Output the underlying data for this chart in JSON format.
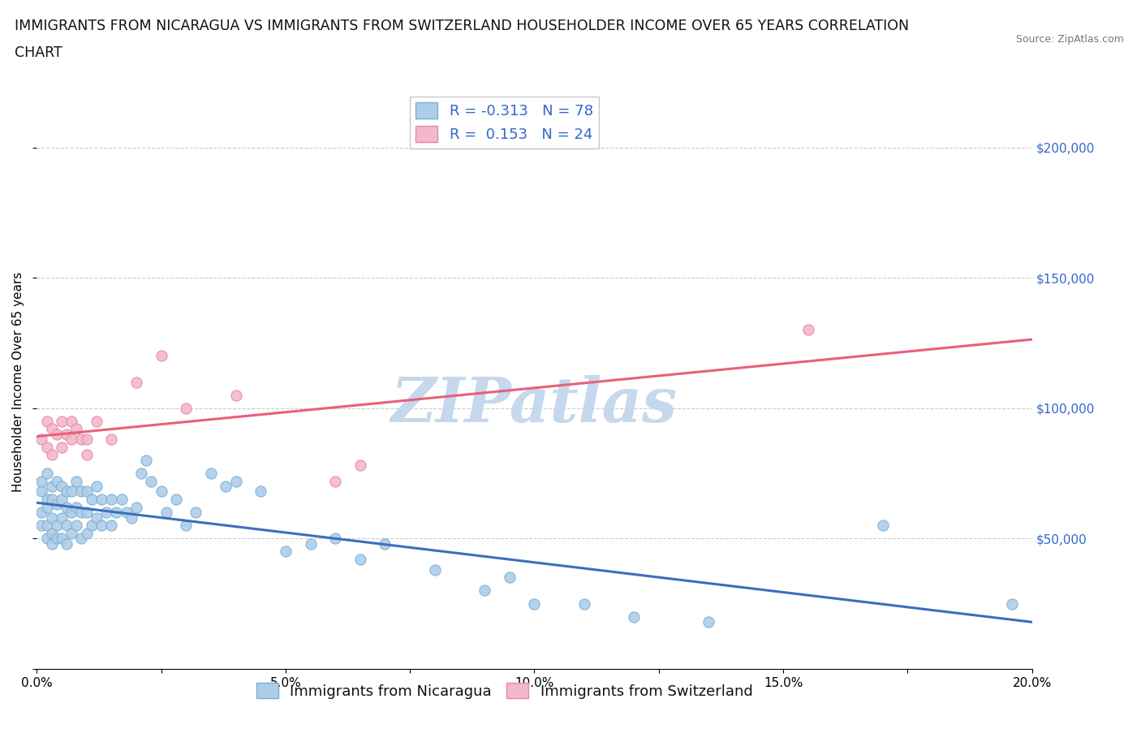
{
  "title_line1": "IMMIGRANTS FROM NICARAGUA VS IMMIGRANTS FROM SWITZERLAND HOUSEHOLDER INCOME OVER 65 YEARS CORRELATION",
  "title_line2": "CHART",
  "source_text": "Source: ZipAtlas.com",
  "ylabel": "Householder Income Over 65 years",
  "xlim": [
    0.0,
    0.2
  ],
  "ylim": [
    0,
    220000
  ],
  "yticks": [
    0,
    50000,
    100000,
    150000,
    200000
  ],
  "right_ytick_labels": [
    "$50,000",
    "$100,000",
    "$150,000",
    "$200,000"
  ],
  "xticks": [
    0.0,
    0.025,
    0.05,
    0.075,
    0.1,
    0.125,
    0.15,
    0.175,
    0.2
  ],
  "xtick_labels": [
    "0.0%",
    "",
    "5.0%",
    "",
    "10.0%",
    "",
    "15.0%",
    "",
    "20.0%"
  ],
  "nicaragua_color": "#aecde8",
  "nicaragua_edge": "#7aafd4",
  "switzerland_color": "#f4b8cb",
  "switzerland_edge": "#e08aaa",
  "nicaragua_line_color": "#3a6fbd",
  "switzerland_line_color": "#e8607a",
  "legend_label1": "R = -0.313   N = 78",
  "legend_label2": "R =  0.153   N = 24",
  "bottom_legend1": "Immigrants from Nicaragua",
  "bottom_legend2": "Immigrants from Switzerland",
  "watermark": "ZIPatlas",
  "nicaragua_x": [
    0.001,
    0.001,
    0.001,
    0.001,
    0.002,
    0.002,
    0.002,
    0.002,
    0.002,
    0.003,
    0.003,
    0.003,
    0.003,
    0.003,
    0.004,
    0.004,
    0.004,
    0.004,
    0.005,
    0.005,
    0.005,
    0.005,
    0.006,
    0.006,
    0.006,
    0.006,
    0.007,
    0.007,
    0.007,
    0.008,
    0.008,
    0.008,
    0.009,
    0.009,
    0.009,
    0.01,
    0.01,
    0.01,
    0.011,
    0.011,
    0.012,
    0.012,
    0.013,
    0.013,
    0.014,
    0.015,
    0.015,
    0.016,
    0.017,
    0.018,
    0.019,
    0.02,
    0.021,
    0.022,
    0.023,
    0.025,
    0.026,
    0.028,
    0.03,
    0.032,
    0.035,
    0.038,
    0.04,
    0.045,
    0.05,
    0.055,
    0.06,
    0.065,
    0.07,
    0.08,
    0.09,
    0.095,
    0.1,
    0.11,
    0.12,
    0.135,
    0.17,
    0.196
  ],
  "nicaragua_y": [
    68000,
    72000,
    60000,
    55000,
    75000,
    65000,
    62000,
    55000,
    50000,
    70000,
    65000,
    58000,
    52000,
    48000,
    72000,
    63000,
    55000,
    50000,
    70000,
    65000,
    58000,
    50000,
    68000,
    62000,
    55000,
    48000,
    68000,
    60000,
    52000,
    72000,
    62000,
    55000,
    68000,
    60000,
    50000,
    68000,
    60000,
    52000,
    65000,
    55000,
    70000,
    58000,
    65000,
    55000,
    60000,
    65000,
    55000,
    60000,
    65000,
    60000,
    58000,
    62000,
    75000,
    80000,
    72000,
    68000,
    60000,
    65000,
    55000,
    60000,
    75000,
    70000,
    72000,
    68000,
    45000,
    48000,
    50000,
    42000,
    48000,
    38000,
    30000,
    35000,
    25000,
    25000,
    20000,
    18000,
    55000,
    25000
  ],
  "switzerland_x": [
    0.001,
    0.002,
    0.002,
    0.003,
    0.003,
    0.004,
    0.005,
    0.005,
    0.006,
    0.007,
    0.007,
    0.008,
    0.009,
    0.01,
    0.01,
    0.012,
    0.015,
    0.02,
    0.025,
    0.03,
    0.04,
    0.06,
    0.065,
    0.155
  ],
  "switzerland_y": [
    88000,
    95000,
    85000,
    92000,
    82000,
    90000,
    95000,
    85000,
    90000,
    95000,
    88000,
    92000,
    88000,
    88000,
    82000,
    95000,
    88000,
    110000,
    120000,
    100000,
    105000,
    72000,
    78000,
    130000
  ],
  "background_color": "#ffffff",
  "grid_color": "#cccccc",
  "title_fontsize": 12.5,
  "axis_label_fontsize": 11,
  "tick_fontsize": 11,
  "legend_fontsize": 13,
  "watermark_color": "#c5d8ec",
  "watermark_fontsize": 55
}
